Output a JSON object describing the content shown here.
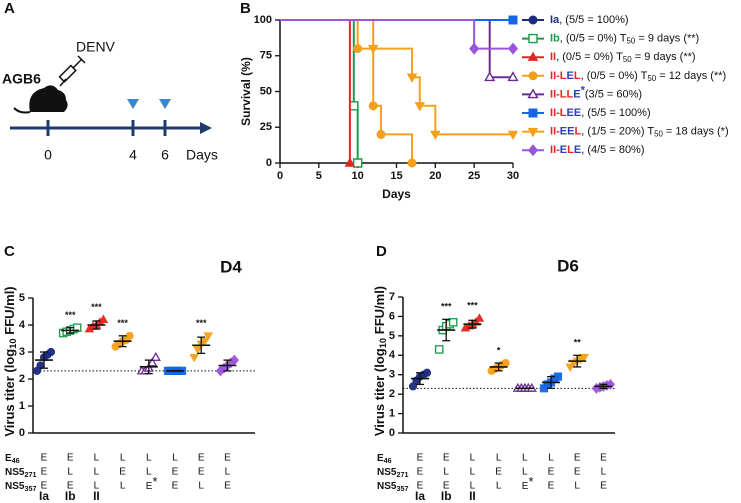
{
  "schematic": {
    "panel": "A",
    "mouse_label": "AGB6",
    "virus_label": "DENV",
    "timeline_labels": [
      "0",
      "4",
      "6"
    ],
    "unit_label": "Days"
  },
  "chart_data": [
    {
      "type": "survival",
      "panel": "B",
      "xlabel": "Days",
      "ylabel": "Survival (%)",
      "xlim": [
        0,
        30
      ],
      "xticks": [
        0,
        5,
        10,
        15,
        20,
        25,
        30
      ],
      "ylim": [
        0,
        100
      ],
      "yticks": [
        0,
        25,
        50,
        75,
        100
      ],
      "letter_colors": {
        "E": "#2b3fb0",
        "L": "#e52620",
        "I": "#e52620",
        "-": "#e52620"
      },
      "series": [
        {
          "name": "Ia",
          "detail": ", (5/5 = 100%)",
          "name_color": "#1c2a80",
          "color": "#1c2a80",
          "marker": "circle",
          "x": [
            0,
            30
          ],
          "values": [
            100,
            100
          ]
        },
        {
          "name": "Ib",
          "detail": ", (0/5 = 0%) T50 = 9 days (**)",
          "name_color": "#1a9a4a",
          "color": "#1a9a4a",
          "marker": "square-open",
          "x": [
            0,
            9.5,
            10
          ],
          "values": [
            100,
            40,
            0
          ]
        },
        {
          "name": "II",
          "detail": ", (0/5 = 0%) T50 = 9 days (**)",
          "name_color": "#e52620",
          "color": "#e52620",
          "marker": "triangle",
          "x": [
            0,
            9
          ],
          "values": [
            100,
            0
          ]
        },
        {
          "name": "II-LEL",
          "detail": ", (0/5 = 0%) T50 = 12 days (**)",
          "color": "#f5a01a",
          "marker": "circle",
          "x": [
            0,
            10,
            12,
            13,
            17
          ],
          "values": [
            100,
            80,
            40,
            20,
            0
          ]
        },
        {
          "name": "II-LLE",
          "detail": "*(3/5 = 60%)",
          "color": "#6a2c91",
          "marker": "triangle-open",
          "x": [
            0,
            27,
            30
          ],
          "values": [
            100,
            60,
            60
          ]
        },
        {
          "name": "II-LEE",
          "detail": ", (5/5 = 100%)",
          "color": "#1565e8",
          "marker": "square",
          "x": [
            0,
            30
          ],
          "values": [
            100,
            100
          ]
        },
        {
          "name": "II-EEL",
          "detail": ", (1/5 = 20%) T50 = 18 days (*)",
          "color": "#f5a01a",
          "marker": "triangle-down",
          "x": [
            0,
            12,
            17,
            18,
            20,
            30
          ],
          "values": [
            100,
            80,
            60,
            40,
            20,
            20
          ]
        },
        {
          "name": "II-ELE",
          "detail": ", (4/5 = 80%)",
          "color": "#9b55dc",
          "marker": "diamond",
          "x": [
            0,
            25,
            30
          ],
          "values": [
            100,
            80,
            80
          ]
        }
      ]
    },
    {
      "type": "dot",
      "panel": "C",
      "title": "D4",
      "ylabel": "Virus titer (log10 FFU/ml)",
      "ylim": [
        0,
        5
      ],
      "yticks": [
        0,
        1,
        2,
        3,
        4,
        5
      ],
      "detection_limit": 2.3,
      "letter_colors": {
        "E": "#2b3fb0",
        "L": "#e52620"
      },
      "genotype_table": {
        "row_labels": [
          "E46",
          "NS5271",
          "NS5357"
        ],
        "rows": [
          [
            "E",
            "E",
            "L",
            "L",
            "L",
            "L",
            "E",
            "E"
          ],
          [
            "E",
            "L",
            "L",
            "E",
            "L",
            "E",
            "E",
            "L"
          ],
          [
            "E",
            "E",
            "L",
            "L",
            "E*",
            "E",
            "L",
            "E"
          ]
        ]
      },
      "group_labels": [
        {
          "text": "Ia",
          "color": "#2b3fb0"
        },
        {
          "text": "Ib",
          "color": "#1a9a4a"
        },
        {
          "text": "II",
          "color": "#e52620"
        }
      ],
      "series": [
        {
          "color": "#1c2a80",
          "marker": "circle",
          "values": [
            2.3,
            2.5,
            2.8,
            2.9,
            3.0
          ],
          "mean": 2.7,
          "sd": 0.3,
          "significance": null
        },
        {
          "color": "#1a9a4a",
          "marker": "square-open",
          "values": [
            3.7,
            3.75,
            3.8,
            3.85,
            3.9
          ],
          "mean": 3.8,
          "sd": 0.1,
          "significance": "***"
        },
        {
          "color": "#e52620",
          "marker": "triangle",
          "values": [
            3.85,
            3.95,
            4.0,
            4.1,
            4.2
          ],
          "mean": 4.0,
          "sd": 0.15,
          "significance": "***"
        },
        {
          "color": "#f5a01a",
          "marker": "circle",
          "values": [
            3.2,
            3.3,
            3.4,
            3.45,
            3.6
          ],
          "mean": 3.4,
          "sd": 0.2,
          "significance": "***"
        },
        {
          "color": "#6a2c91",
          "marker": "triangle-open",
          "values": [
            2.3,
            2.3,
            2.4,
            2.6,
            2.8
          ],
          "mean": 2.45,
          "sd": 0.25,
          "significance": null
        },
        {
          "color": "#1565e8",
          "marker": "square",
          "values": [
            2.3,
            2.3,
            2.3,
            2.3,
            2.3
          ],
          "mean": 2.3,
          "sd": 0,
          "significance": null
        },
        {
          "color": "#f5a01a",
          "marker": "triangle-down",
          "values": [
            2.8,
            3.1,
            3.3,
            3.4,
            3.6
          ],
          "mean": 3.25,
          "sd": 0.3,
          "significance": "***"
        },
        {
          "color": "#9b55dc",
          "marker": "diamond",
          "values": [
            2.3,
            2.4,
            2.5,
            2.6,
            2.7
          ],
          "mean": 2.5,
          "sd": 0.2,
          "significance": null
        }
      ]
    },
    {
      "type": "dot",
      "panel": "D",
      "title": "D6",
      "ylabel": "Virus titer (log10 FFU/ml)",
      "ylim": [
        0,
        7
      ],
      "yticks": [
        0,
        1,
        2,
        3,
        4,
        5,
        6,
        7
      ],
      "detection_limit": 2.3,
      "letter_colors": {
        "E": "#2b3fb0",
        "L": "#e52620"
      },
      "genotype_table": {
        "row_labels": [
          "E46",
          "NS5271",
          "NS5357"
        ],
        "rows": [
          [
            "E",
            "E",
            "L",
            "L",
            "L",
            "L",
            "E",
            "E"
          ],
          [
            "E",
            "L",
            "L",
            "E",
            "L",
            "E",
            "E",
            "L"
          ],
          [
            "E",
            "E",
            "L",
            "L",
            "E*",
            "E",
            "L",
            "E"
          ]
        ]
      },
      "group_labels": [
        {
          "text": "Ia",
          "color": "#2b3fb0"
        },
        {
          "text": "Ib",
          "color": "#1a9a4a"
        },
        {
          "text": "II",
          "color": "#e52620"
        }
      ],
      "series": [
        {
          "color": "#1c2a80",
          "marker": "circle",
          "values": [
            2.4,
            2.7,
            2.9,
            3.0,
            3.1
          ],
          "mean": 2.8,
          "sd": 0.3,
          "significance": null
        },
        {
          "color": "#1a9a4a",
          "marker": "square-open",
          "values": [
            4.3,
            5.3,
            5.5,
            5.6,
            5.7
          ],
          "mean": 5.3,
          "sd": 0.55,
          "significance": "***"
        },
        {
          "color": "#e52620",
          "marker": "triangle",
          "values": [
            5.4,
            5.5,
            5.6,
            5.7,
            5.9
          ],
          "mean": 5.6,
          "sd": 0.2,
          "significance": "***"
        },
        {
          "color": "#f5a01a",
          "marker": "circle",
          "values": [
            3.2,
            3.3,
            3.4,
            3.5,
            3.6
          ],
          "mean": 3.4,
          "sd": 0.2,
          "significance": "*"
        },
        {
          "color": "#6a2c91",
          "marker": "triangle-open",
          "values": [
            2.3,
            2.3,
            2.3,
            2.3,
            2.3
          ],
          "mean": 2.3,
          "sd": 0,
          "significance": null
        },
        {
          "color": "#1565e8",
          "marker": "square",
          "values": [
            2.3,
            2.5,
            2.6,
            2.8,
            2.9
          ],
          "mean": 2.6,
          "sd": 0.3,
          "significance": null
        },
        {
          "color": "#f5a01a",
          "marker": "triangle-down",
          "values": [
            3.4,
            3.6,
            3.7,
            3.8,
            3.9
          ],
          "mean": 3.7,
          "sd": 0.3,
          "significance": "**"
        },
        {
          "color": "#9b55dc",
          "marker": "diamond",
          "values": [
            2.3,
            2.35,
            2.4,
            2.45,
            2.5
          ],
          "mean": 2.4,
          "sd": 0.1,
          "significance": null
        }
      ]
    }
  ]
}
